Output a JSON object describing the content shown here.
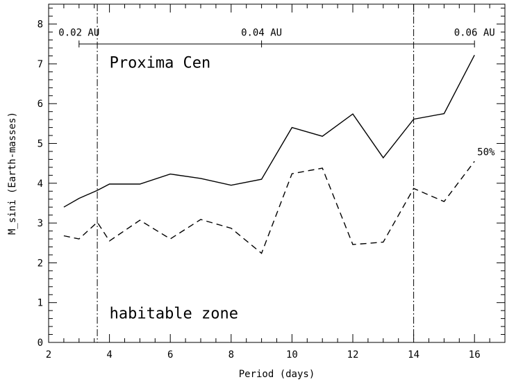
{
  "chart_data": {
    "type": "line",
    "title": "Proxima Cen",
    "xlabel": "Period (days)",
    "ylabel": "M_sini (Earth-masses)",
    "xlim": [
      2,
      17
    ],
    "ylim": [
      0,
      8.5
    ],
    "x_ticks": [
      2,
      4,
      6,
      8,
      10,
      12,
      14,
      16
    ],
    "y_ticks": [
      0,
      1,
      2,
      3,
      4,
      5,
      6,
      7,
      8
    ],
    "grid": false,
    "series": [
      {
        "name": "",
        "style": "solid",
        "x": [
          2.5,
          3.0,
          3.6,
          4.0,
          5.0,
          6.0,
          7.0,
          8.0,
          9.0,
          10.0,
          11.0,
          12.0,
          13.0,
          14.0,
          15.0,
          16.0
        ],
        "y": [
          3.4,
          3.62,
          3.82,
          3.98,
          3.98,
          4.23,
          4.12,
          3.95,
          4.1,
          5.4,
          5.18,
          5.74,
          4.64,
          5.61,
          5.75,
          7.22
        ]
      },
      {
        "name": "50%",
        "style": "dashed",
        "x": [
          2.5,
          3.0,
          3.6,
          4.0,
          5.0,
          6.0,
          7.0,
          8.0,
          9.0,
          10.0,
          11.0,
          12.0,
          13.0,
          14.0,
          15.0,
          16.0
        ],
        "y": [
          2.68,
          2.6,
          3.02,
          2.55,
          3.07,
          2.6,
          3.09,
          2.87,
          2.24,
          4.24,
          4.38,
          2.46,
          2.52,
          3.87,
          3.54,
          4.55
        ]
      }
    ],
    "vertical_lines": [
      3.6,
      14.0
    ],
    "au_axis": {
      "y": 7.5,
      "x_start": 3.0,
      "x_end": 16.0,
      "ticks": [
        3.0,
        9.0,
        16.0
      ],
      "labels": [
        {
          "x": 3.0,
          "text": "0.02 AU"
        },
        {
          "x": 9.0,
          "text": "0.04 AU"
        },
        {
          "x": 16.0,
          "text": "0.06 AU"
        }
      ]
    },
    "annotations": [
      {
        "text": "Proxima Cen",
        "x": 4.0,
        "y": 6.9
      },
      {
        "text": "habitable zone",
        "x": 4.0,
        "y": 0.6
      },
      {
        "text": "50%",
        "x": 16.6,
        "y": 4.7
      }
    ]
  }
}
